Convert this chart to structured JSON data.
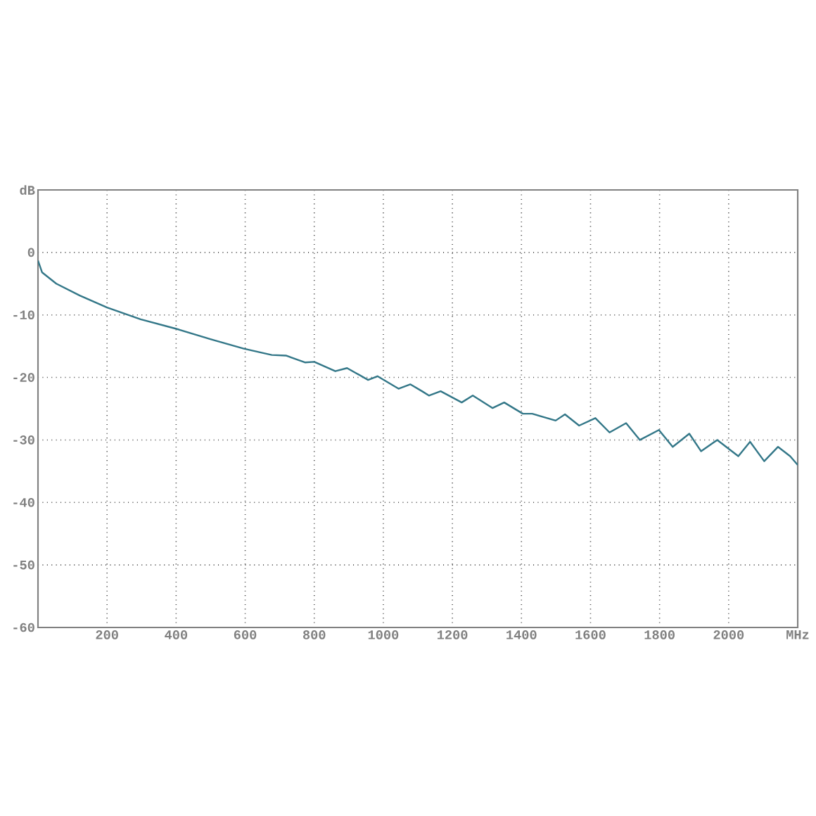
{
  "chart_data": {
    "type": "line",
    "xlim": [
      0,
      2200
    ],
    "ylim": [
      -60,
      10
    ],
    "xticks": [
      200,
      400,
      600,
      800,
      1000,
      1200,
      1400,
      1600,
      1800,
      2000,
      {
        "value": 2200,
        "label": "MHz"
      }
    ],
    "yticks": [
      -60,
      -50,
      -40,
      -30,
      -20,
      -10,
      0,
      {
        "value": 10,
        "label": "dB"
      }
    ],
    "grid": true,
    "series": [
      {
        "color": "#337788",
        "x": [
          0,
          12,
          53,
          121,
          200,
          297,
          399,
          501,
          596,
          677,
          718,
          773,
          800,
          861,
          895,
          956,
          983,
          1044,
          1078,
          1112,
          1132,
          1166,
          1227,
          1259,
          1316,
          1350,
          1404,
          1431,
          1499,
          1526,
          1567,
          1614,
          1655,
          1703,
          1743,
          1798,
          1838,
          1886,
          1920,
          1967,
          2028,
          2062,
          2103,
          2143,
          2178,
          2200
        ],
        "values": [
          -1.3,
          -3.2,
          -5.0,
          -6.9,
          -8.8,
          -10.7,
          -12.2,
          -13.9,
          -15.4,
          -16.4,
          -16.5,
          -17.6,
          -17.5,
          -19.0,
          -18.5,
          -20.4,
          -19.8,
          -21.8,
          -21.1,
          -22.2,
          -22.9,
          -22.2,
          -24.0,
          -22.9,
          -24.9,
          -24.0,
          -25.8,
          -25.8,
          -26.9,
          -25.9,
          -27.7,
          -26.5,
          -28.8,
          -27.3,
          -30.0,
          -28.4,
          -31.1,
          -29.0,
          -31.8,
          -30.0,
          -32.6,
          -30.3,
          -33.4,
          -31.1,
          -32.6,
          -34.0
        ]
      }
    ]
  }
}
